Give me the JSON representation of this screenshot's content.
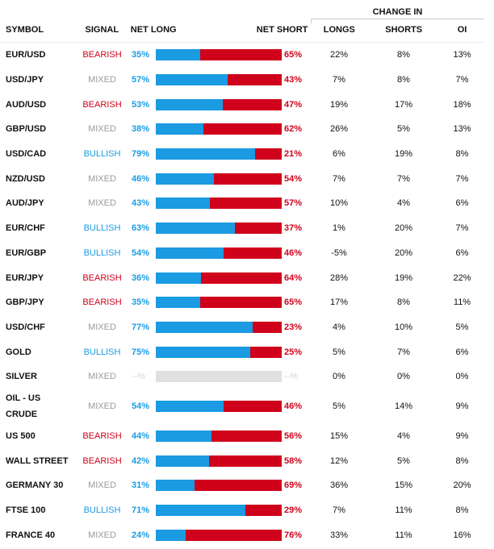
{
  "header": {
    "group_label": "CHANGE IN",
    "columns": {
      "symbol": "SYMBOL",
      "signal": "SIGNAL",
      "net_long": "NET LONG",
      "net_short": "NET SHORT",
      "longs": "LONGS",
      "shorts": "SHORTS",
      "oi": "OI"
    }
  },
  "colors": {
    "long": "#1b9be2",
    "short": "#d0021b",
    "mixed": "#9b9b9b",
    "empty_bar": "#e0e0e0"
  },
  "rows": [
    {
      "symbol": "EUR/USD",
      "signal": "BEARISH",
      "net_long": "35%",
      "net_short": "65%",
      "long_pct": 35,
      "longs": "22%",
      "shorts": "8%",
      "oi": "13%"
    },
    {
      "symbol": "USD/JPY",
      "signal": "MIXED",
      "net_long": "57%",
      "net_short": "43%",
      "long_pct": 57,
      "longs": "7%",
      "shorts": "8%",
      "oi": "7%"
    },
    {
      "symbol": "AUD/USD",
      "signal": "BEARISH",
      "net_long": "53%",
      "net_short": "47%",
      "long_pct": 53,
      "longs": "19%",
      "shorts": "17%",
      "oi": "18%"
    },
    {
      "symbol": "GBP/USD",
      "signal": "MIXED",
      "net_long": "38%",
      "net_short": "62%",
      "long_pct": 38,
      "longs": "26%",
      "shorts": "5%",
      "oi": "13%"
    },
    {
      "symbol": "USD/CAD",
      "signal": "BULLISH",
      "net_long": "79%",
      "net_short": "21%",
      "long_pct": 79,
      "longs": "6%",
      "shorts": "19%",
      "oi": "8%"
    },
    {
      "symbol": "NZD/USD",
      "signal": "MIXED",
      "net_long": "46%",
      "net_short": "54%",
      "long_pct": 46,
      "longs": "7%",
      "shorts": "7%",
      "oi": "7%"
    },
    {
      "symbol": "AUD/JPY",
      "signal": "MIXED",
      "net_long": "43%",
      "net_short": "57%",
      "long_pct": 43,
      "longs": "10%",
      "shorts": "4%",
      "oi": "6%"
    },
    {
      "symbol": "EUR/CHF",
      "signal": "BULLISH",
      "net_long": "63%",
      "net_short": "37%",
      "long_pct": 63,
      "longs": "1%",
      "shorts": "20%",
      "oi": "7%"
    },
    {
      "symbol": "EUR/GBP",
      "signal": "BULLISH",
      "net_long": "54%",
      "net_short": "46%",
      "long_pct": 54,
      "longs": "-5%",
      "shorts": "20%",
      "oi": "6%"
    },
    {
      "symbol": "EUR/JPY",
      "signal": "BEARISH",
      "net_long": "36%",
      "net_short": "64%",
      "long_pct": 36,
      "longs": "28%",
      "shorts": "19%",
      "oi": "22%"
    },
    {
      "symbol": "GBP/JPY",
      "signal": "BEARISH",
      "net_long": "35%",
      "net_short": "65%",
      "long_pct": 35,
      "longs": "17%",
      "shorts": "8%",
      "oi": "11%"
    },
    {
      "symbol": "USD/CHF",
      "signal": "MIXED",
      "net_long": "77%",
      "net_short": "23%",
      "long_pct": 77,
      "longs": "4%",
      "shorts": "10%",
      "oi": "5%"
    },
    {
      "symbol": "GOLD",
      "signal": "BULLISH",
      "net_long": "75%",
      "net_short": "25%",
      "long_pct": 75,
      "longs": "5%",
      "shorts": "7%",
      "oi": "6%"
    },
    {
      "symbol": "SILVER",
      "signal": "MIXED",
      "net_long": "--%",
      "net_short": "--%",
      "long_pct": null,
      "longs": "0%",
      "shorts": "0%",
      "oi": "0%"
    },
    {
      "symbol": "OIL - US CRUDE",
      "signal": "MIXED",
      "net_long": "54%",
      "net_short": "46%",
      "long_pct": 54,
      "longs": "5%",
      "shorts": "14%",
      "oi": "9%"
    },
    {
      "symbol": "US 500",
      "signal": "BEARISH",
      "net_long": "44%",
      "net_short": "56%",
      "long_pct": 44,
      "longs": "15%",
      "shorts": "4%",
      "oi": "9%"
    },
    {
      "symbol": "WALL STREET",
      "signal": "BEARISH",
      "net_long": "42%",
      "net_short": "58%",
      "long_pct": 42,
      "longs": "12%",
      "shorts": "5%",
      "oi": "8%"
    },
    {
      "symbol": "GERMANY 30",
      "signal": "MIXED",
      "net_long": "31%",
      "net_short": "69%",
      "long_pct": 31,
      "longs": "36%",
      "shorts": "15%",
      "oi": "20%"
    },
    {
      "symbol": "FTSE 100",
      "signal": "BULLISH",
      "net_long": "71%",
      "net_short": "29%",
      "long_pct": 71,
      "longs": "7%",
      "shorts": "11%",
      "oi": "8%"
    },
    {
      "symbol": "FRANCE 40",
      "signal": "MIXED",
      "net_long": "24%",
      "net_short": "76%",
      "long_pct": 24,
      "longs": "33%",
      "shorts": "11%",
      "oi": "16%"
    }
  ]
}
